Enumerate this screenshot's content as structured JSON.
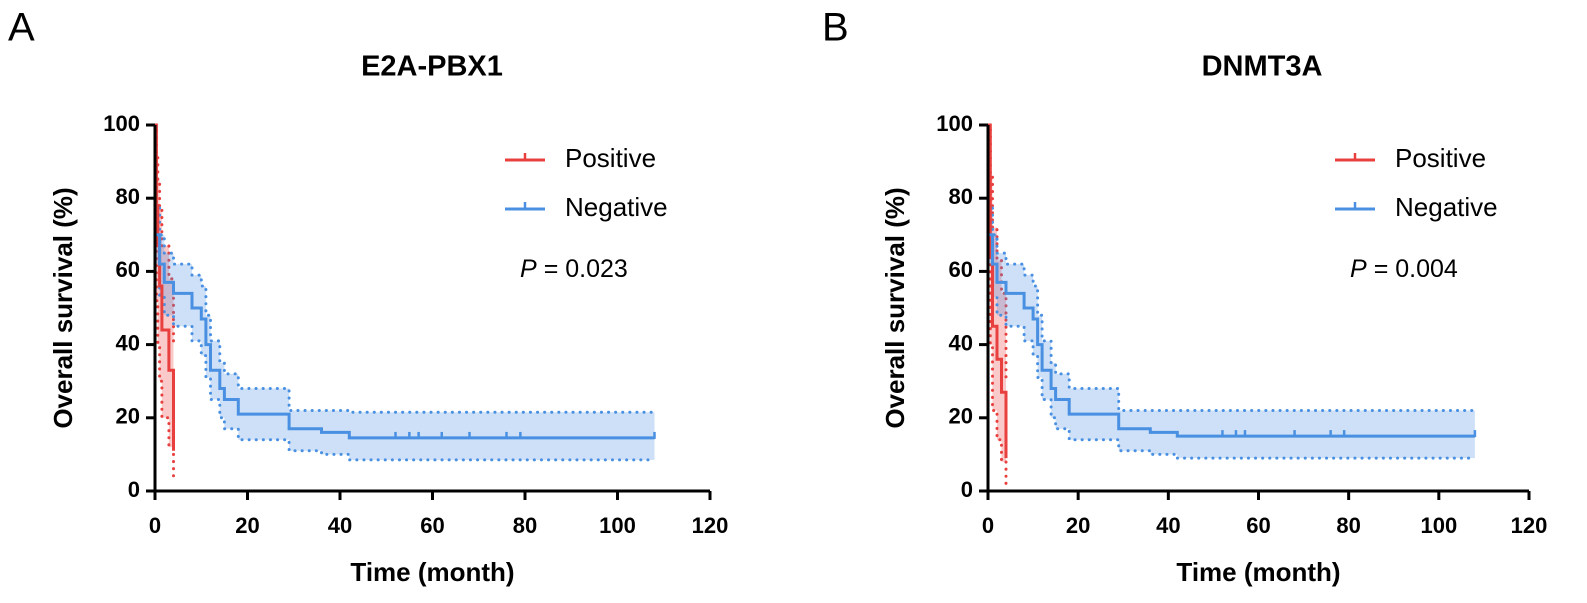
{
  "chart_data": [
    {
      "type": "step",
      "panel": "A",
      "title": "E2A-PBX1",
      "xlabel": "Time (month)",
      "ylabel": "Overall survival (%)",
      "xlim": [
        0,
        120
      ],
      "ylim": [
        0,
        100
      ],
      "xticks": [
        0,
        20,
        40,
        60,
        80,
        100,
        120
      ],
      "yticks": [
        0,
        20,
        40,
        60,
        80,
        100
      ],
      "grid": false,
      "legend": "upper right",
      "annotation": {
        "symbol": "P",
        "text": "= 0.023"
      },
      "series": [
        {
          "name": "Positive",
          "color": "#e8403e",
          "x": [
            0,
            0.3,
            0.6,
            1,
            1.5,
            3,
            4
          ],
          "values": [
            100,
            78,
            67,
            56,
            44,
            33,
            11
          ],
          "lower": [
            100,
            52,
            40,
            30,
            20,
            12,
            3
          ],
          "upper": [
            100,
            92,
            85,
            77,
            67,
            58,
            40
          ],
          "censored": []
        },
        {
          "name": "Negative",
          "color": "#4a90e2",
          "x": [
            0,
            1,
            2,
            4,
            8,
            10,
            11,
            12,
            14,
            15,
            18,
            29,
            36,
            42,
            108
          ],
          "values": [
            70,
            62,
            57,
            54,
            50,
            47,
            40,
            33,
            28,
            25,
            21,
            17,
            16,
            14.5,
            14.5
          ],
          "lower": [
            62,
            53,
            48,
            45,
            41,
            37,
            31,
            25,
            20,
            17,
            14,
            11,
            10,
            8.5,
            8.5
          ],
          "upper": [
            78,
            70,
            65,
            62,
            59,
            56,
            48,
            41,
            35,
            32,
            28,
            22,
            22,
            21.5,
            21.5
          ],
          "censored": [
            52,
            55,
            57,
            62,
            68,
            76,
            79,
            108
          ]
        }
      ]
    },
    {
      "type": "step",
      "panel": "B",
      "title": "DNMT3A",
      "xlabel": "Time (month)",
      "ylabel": "Overall survival (%)",
      "xlim": [
        0,
        120
      ],
      "ylim": [
        0,
        100
      ],
      "xticks": [
        0,
        20,
        40,
        60,
        80,
        100,
        120
      ],
      "yticks": [
        0,
        20,
        40,
        60,
        80,
        100
      ],
      "grid": false,
      "legend": "upper right",
      "annotation": {
        "symbol": "P",
        "text": "= 0.004"
      },
      "series": [
        {
          "name": "Positive",
          "color": "#e8403e",
          "x": [
            0,
            0.5,
            1,
            2,
            3,
            4
          ],
          "values": [
            100,
            64,
            45,
            36,
            27,
            9
          ],
          "lower": [
            100,
            40,
            22,
            14,
            8,
            2
          ],
          "upper": [
            100,
            86,
            72,
            63,
            54,
            30
          ],
          "censored": []
        },
        {
          "name": "Negative",
          "color": "#4a90e2",
          "x": [
            0,
            1,
            2,
            4,
            8,
            10,
            11,
            12,
            14,
            15,
            18,
            29,
            36,
            42,
            108
          ],
          "values": [
            70,
            62,
            57,
            54,
            50,
            47,
            40,
            33,
            28,
            25,
            21,
            17,
            16,
            15,
            15
          ],
          "lower": [
            62,
            53,
            48,
            45,
            41,
            37,
            31,
            25,
            20,
            17,
            14,
            11,
            10,
            9,
            9
          ],
          "upper": [
            78,
            70,
            65,
            62,
            59,
            56,
            48,
            41,
            35,
            32,
            28,
            22,
            22,
            22,
            22
          ],
          "censored": [
            52,
            55,
            57,
            68,
            76,
            79,
            108
          ]
        }
      ]
    }
  ]
}
